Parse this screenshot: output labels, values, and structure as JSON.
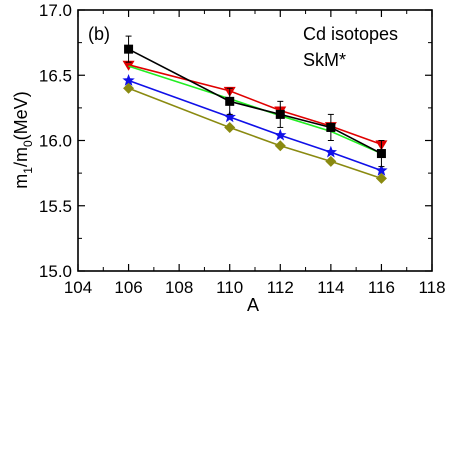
{
  "chart_data": {
    "type": "line",
    "panel_label": "(b)",
    "annotation_lines": [
      "Cd isotopes",
      "SkM*"
    ],
    "xlabel": "A",
    "ylabel": "m1/m0(MeV)",
    "ylabel_parts": {
      "m": "m",
      "sub1": "1",
      "slash": "/m",
      "sub0": "0",
      "unit": "(MeV)"
    },
    "xlim": [
      104,
      118
    ],
    "ylim": [
      15.0,
      17.0
    ],
    "xticks": [
      104,
      106,
      108,
      110,
      112,
      114,
      116,
      118
    ],
    "xtick_labels": [
      "104",
      "106",
      "108",
      "110",
      "112",
      "114",
      "116",
      "118"
    ],
    "yticks": [
      15.0,
      15.5,
      16.0,
      16.5,
      17.0
    ],
    "ytick_labels": [
      "15.0",
      "15.5",
      "16.0",
      "16.5",
      "17.0"
    ],
    "grid": false,
    "series": [
      {
        "color": "#e00000",
        "marker": "triangle-down",
        "x": [
          106,
          110,
          112,
          114,
          116
        ],
        "y": [
          16.58,
          16.38,
          16.23,
          16.11,
          15.97
        ]
      },
      {
        "color": "#22ee22",
        "marker": "none",
        "x": [
          106,
          110,
          112,
          114,
          116
        ],
        "y": [
          16.57,
          16.32,
          16.19,
          16.07,
          15.9
        ]
      },
      {
        "color": "#1010e8",
        "marker": "star",
        "x": [
          106,
          110,
          112,
          114,
          116
        ],
        "y": [
          16.46,
          16.18,
          16.04,
          15.91,
          15.77
        ]
      },
      {
        "color": "#8a8a10",
        "marker": "diamond",
        "x": [
          106,
          110,
          112,
          114,
          116
        ],
        "y": [
          16.4,
          16.1,
          15.96,
          15.84,
          15.71
        ]
      },
      {
        "color": "#000000",
        "marker": "square",
        "x": [
          106,
          110,
          112,
          114,
          116
        ],
        "y": [
          16.7,
          16.3,
          16.2,
          16.1,
          15.9
        ],
        "err": [
          0.1,
          0.1,
          0.1,
          0.1,
          0.1
        ]
      }
    ]
  }
}
